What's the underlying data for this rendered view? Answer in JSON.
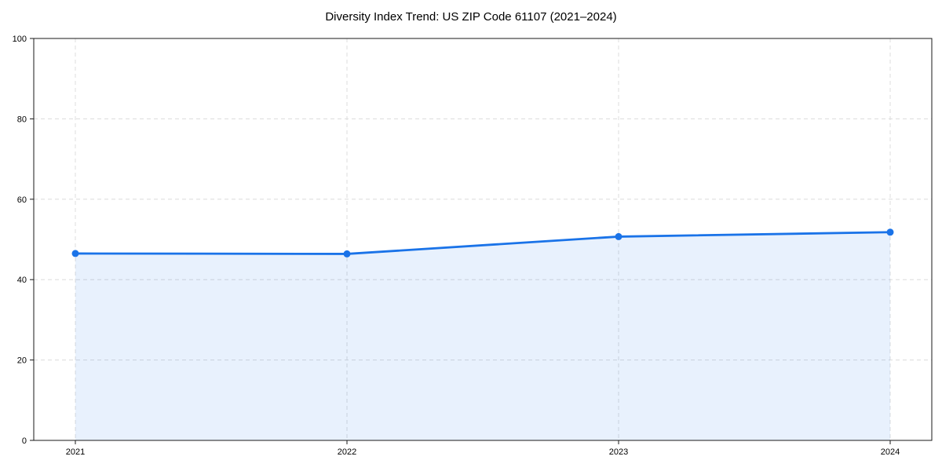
{
  "chart_data": {
    "type": "area",
    "title": "Diversity Index Trend: US ZIP Code 61107 (2021–2024)",
    "categories": [
      "2021",
      "2022",
      "2023",
      "2024"
    ],
    "x": [
      2021,
      2022,
      2023,
      2024
    ],
    "series": [
      {
        "name": "Diversity Index",
        "values": [
          46.5,
          46.4,
          50.7,
          51.8
        ]
      }
    ],
    "xlabel": "",
    "ylabel": "",
    "ylim": [
      0,
      100
    ],
    "yticks": [
      0,
      20,
      40,
      60,
      80,
      100
    ],
    "grid": true,
    "grid_style": "dashed",
    "legend_position": "none",
    "line_color": "#1a73e8",
    "fill_color": "#e8f0fe",
    "marker_color": "#1a73e8",
    "grid_color": "#dcdcdc",
    "axis_color": "#1a1a1a",
    "background_color": "#ffffff"
  }
}
